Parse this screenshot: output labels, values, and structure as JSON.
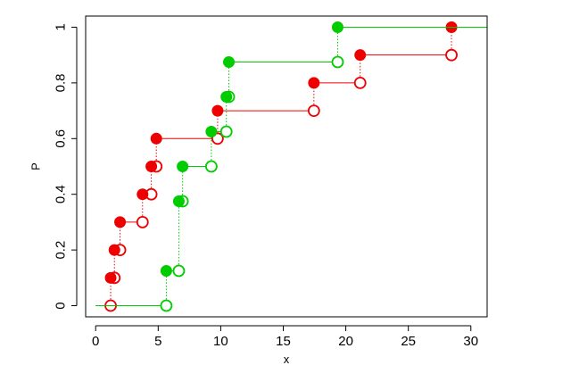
{
  "chart_data": {
    "type": "line",
    "title": "",
    "xlabel": "x",
    "ylabel": "P",
    "xlim": [
      -0.8,
      31.3
    ],
    "ylim": [
      -0.04,
      1.04
    ],
    "x_ticks": [
      0,
      5,
      10,
      15,
      20,
      25,
      30
    ],
    "x_tick_labels": [
      "0",
      "5",
      "10",
      "15",
      "20",
      "25",
      "30"
    ],
    "y_ticks": [
      0,
      0.2,
      0.4,
      0.6,
      0.8,
      1
    ],
    "y_tick_labels": [
      "0",
      "0.2",
      "0.4",
      "0.6",
      "0.8",
      "1"
    ],
    "grid": false,
    "legend": "none",
    "series": [
      {
        "color": "#ee0000",
        "style": "ecdf-step",
        "jumps": [
          1.2,
          1.5,
          1.95,
          3.75,
          4.45,
          4.85,
          9.75,
          17.45,
          21.15,
          28.45
        ],
        "values": [
          0.1,
          0.2,
          0.3,
          0.4,
          0.5,
          0.6,
          0.7,
          0.8,
          0.9,
          1.0
        ]
      },
      {
        "color": "#00cc00",
        "style": "ecdf-step",
        "jumps": [
          5.65,
          6.65,
          6.95,
          9.25,
          10.45,
          10.65,
          19.35
        ],
        "values": [
          0.125,
          0.375,
          0.5,
          0.625,
          0.75,
          0.875,
          1.0
        ]
      }
    ]
  }
}
